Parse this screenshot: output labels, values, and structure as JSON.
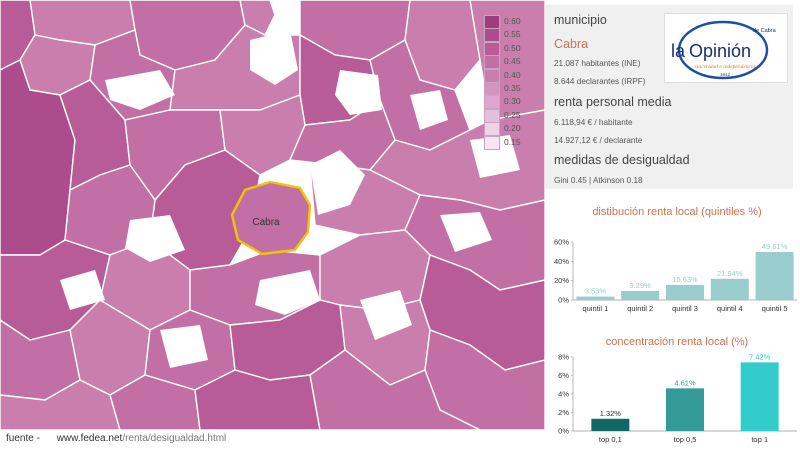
{
  "legend": {
    "entries": [
      "0.60",
      "0.55",
      "0.50",
      "0.45",
      "0.40",
      "0.35",
      "0.30",
      "0.25",
      "0.20",
      "0.15"
    ],
    "colors": [
      "#9e3d7d",
      "#ad4c8c",
      "#b85c98",
      "#c26fa6",
      "#c97eae",
      "#d394c0",
      "#dca8cf",
      "#e6bedd",
      "#eed2ea",
      "#f7e4f4"
    ]
  },
  "map": {
    "highlight_label": "Cabra",
    "highlight_color": "#c26fa6",
    "highlight_border": "#f4c400"
  },
  "panel": {
    "municipio_heading": "municipio",
    "municipio_name": "Cabra",
    "habitantes": "21.087 habitantes (INE)",
    "declarantes": "8.644 declarantes (IRPF)",
    "renta_heading": "renta personal media",
    "renta_habitante": "6.118,94 € / habitante",
    "renta_declarante": "14.927,12 € / declarante",
    "desigualdad_heading": "medidas de desigualdad",
    "desigualdad_values": "Gini 0.45 | Atkinson 0.18"
  },
  "logo": {
    "name_part1": "la",
    "name_part2": "Opinión",
    "suffix": "de Cabra",
    "tagline": "sinceridad e independencia",
    "year": "1912"
  },
  "footer": {
    "label": "fuente -",
    "url_domain": "www.fedea.net",
    "url_path": "/renta/desigualdad.html"
  },
  "chart_data": [
    {
      "type": "bar",
      "title": "distibución renta local (quintiles %)",
      "categories": [
        "quintil 1",
        "quintil 2",
        "quintil 3",
        "quintil 4",
        "quintil 5"
      ],
      "values": [
        3.53,
        9.29,
        15.63,
        21.94,
        49.61
      ],
      "labels": [
        "3.53%",
        "9.29%",
        "15.63%",
        "21.94%",
        "49.61%"
      ],
      "ylim": [
        0,
        60
      ],
      "yticks": [
        "0%",
        "20%",
        "40%",
        "60%"
      ],
      "color": "#99cccc"
    },
    {
      "type": "bar",
      "title": "concentración renta local (%)",
      "categories": [
        "top 0,1",
        "top 0,5",
        "top 1"
      ],
      "values": [
        1.32,
        4.61,
        7.42
      ],
      "labels": [
        "1.32%",
        "4.61%",
        "7.42%"
      ],
      "ylim": [
        0,
        8
      ],
      "yticks": [
        "0%",
        "2%",
        "4%",
        "6%",
        "8%"
      ],
      "colors": [
        "#116666",
        "#339999",
        "#33cccc"
      ]
    }
  ]
}
